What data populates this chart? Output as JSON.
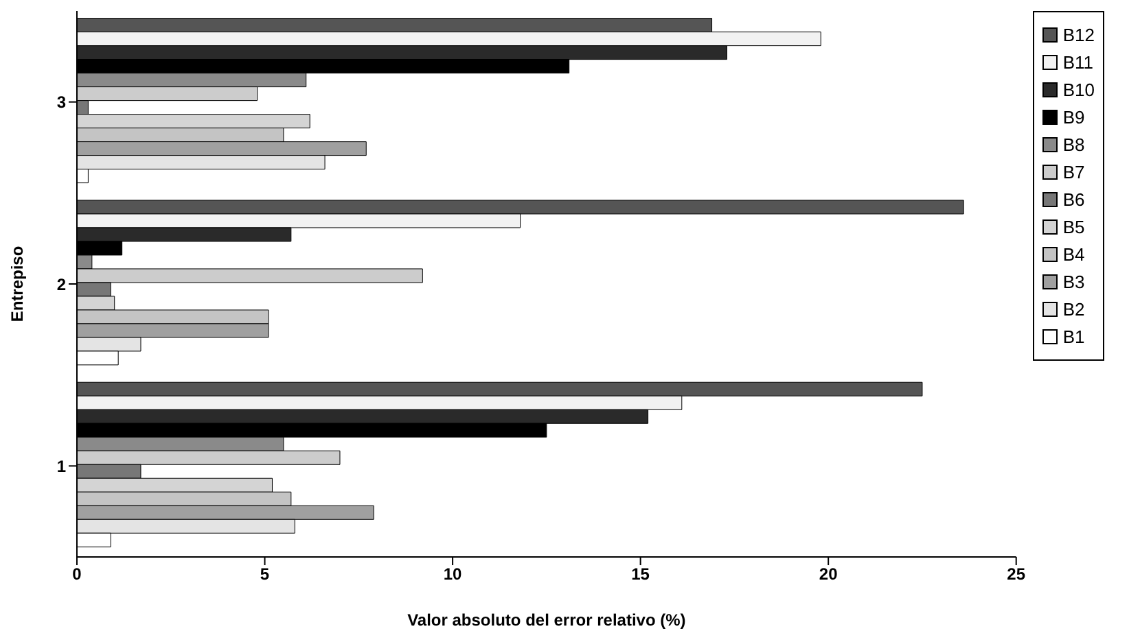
{
  "chart_data": {
    "type": "bar",
    "orientation": "horizontal",
    "xlabel": "Valor absoluto del error relativo (%)",
    "ylabel": "Entrepiso",
    "categories": [
      "3",
      "2",
      "1"
    ],
    "xlim": [
      0,
      25
    ],
    "xticks": [
      0,
      5,
      10,
      15,
      20,
      25
    ],
    "grid": false,
    "legend": "right",
    "series": [
      {
        "name": "B1",
        "color": "#ffffff",
        "values": [
          0.3,
          1.1,
          0.9
        ]
      },
      {
        "name": "B2",
        "color": "#e4e4e4",
        "values": [
          6.6,
          1.7,
          5.8
        ]
      },
      {
        "name": "B3",
        "color": "#a0a0a0",
        "values": [
          7.7,
          5.1,
          7.9
        ]
      },
      {
        "name": "B4",
        "color": "#c4c4c4",
        "values": [
          5.5,
          5.1,
          5.7
        ]
      },
      {
        "name": "B5",
        "color": "#d4d4d4",
        "values": [
          6.2,
          1.0,
          5.2
        ]
      },
      {
        "name": "B6",
        "color": "#777777",
        "values": [
          0.3,
          0.9,
          1.7
        ]
      },
      {
        "name": "B7",
        "color": "#cccccc",
        "values": [
          4.8,
          9.2,
          7.0
        ]
      },
      {
        "name": "B8",
        "color": "#8a8a8a",
        "values": [
          6.1,
          0.4,
          5.5
        ]
      },
      {
        "name": "B9",
        "color": "#000000",
        "values": [
          13.1,
          1.2,
          12.5
        ]
      },
      {
        "name": "B10",
        "color": "#2a2a2a",
        "values": [
          17.3,
          5.7,
          15.2
        ]
      },
      {
        "name": "B11",
        "color": "#f2f2f2",
        "values": [
          19.8,
          11.8,
          16.1
        ]
      },
      {
        "name": "B12",
        "color": "#555555",
        "values": [
          16.9,
          23.6,
          22.5
        ]
      }
    ]
  }
}
